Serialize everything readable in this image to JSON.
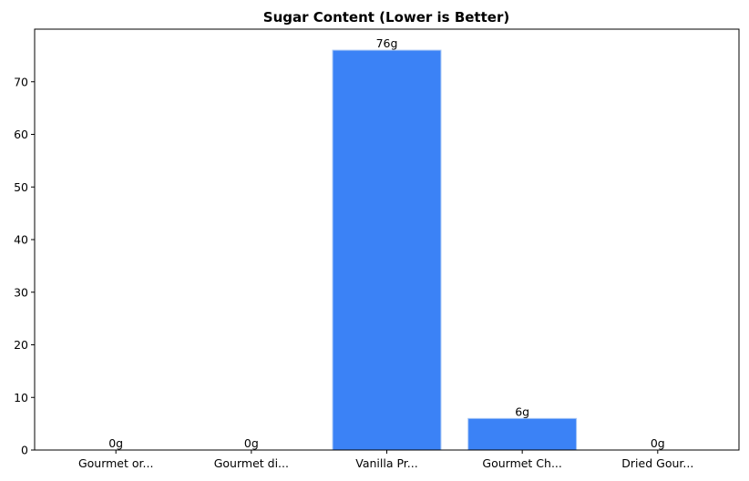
{
  "chart_data": {
    "type": "bar",
    "title": "Sugar Content (Lower is Better)",
    "xlabel": "",
    "ylabel": "",
    "categories": [
      "Gourmet or...",
      "Gourmet di...",
      "Vanilla Pr...",
      "Gourmet Ch...",
      "Dried Gour..."
    ],
    "values": [
      0,
      0,
      76,
      6,
      0
    ],
    "data_labels": [
      "0g",
      "0g",
      "76g",
      "6g",
      "0g"
    ],
    "ylim": [
      0,
      80
    ],
    "yticks": [
      0,
      10,
      20,
      30,
      40,
      50,
      60,
      70
    ],
    "grid": false,
    "legend": "none",
    "colors": {
      "bar": "#3b82f6",
      "bar_edge": "#a9c8f5"
    }
  }
}
